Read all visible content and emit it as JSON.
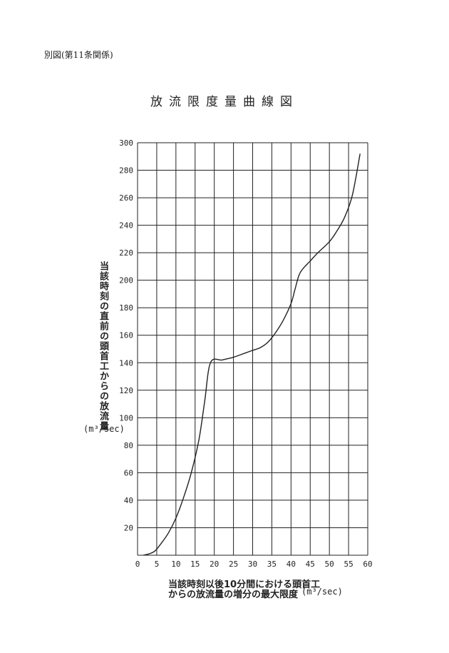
{
  "header": {
    "reference": "別図(第11条関係)",
    "title": "放流限度量曲線図"
  },
  "chart_data": {
    "type": "line",
    "title": "放流限度量曲線図",
    "ylabel": "当該時刻の直前の頭首工からの放流量",
    "yunit": "(m³/sec)",
    "xlabel_line1": "当該時刻以後10分間における頭首工",
    "xlabel_line2": "からの放流量の増分の最大限度",
    "xunit": "(m³/sec)",
    "xlim": [
      0,
      60
    ],
    "ylim": [
      0,
      300
    ],
    "grid": true,
    "x_ticks": [
      "0",
      "5",
      "10",
      "15",
      "20",
      "25",
      "30",
      "35",
      "40",
      "45",
      "50",
      "55",
      "60"
    ],
    "y_ticks": [
      "20",
      "40",
      "60",
      "80",
      "100",
      "120",
      "140",
      "160",
      "180",
      "200",
      "220",
      "240",
      "260",
      "280",
      "300"
    ],
    "series": [
      {
        "x": [
          1.5,
          3,
          4.5,
          6,
          8,
          10,
          12,
          14,
          16,
          17.5,
          19,
          22,
          25,
          28,
          30,
          32,
          34,
          36,
          38,
          40,
          41,
          42,
          43,
          45,
          47,
          50,
          52,
          54,
          56,
          58
        ],
        "y": [
          0,
          1,
          3,
          8,
          16,
          27,
          42,
          60,
          84,
          112,
          140,
          142,
          144,
          147,
          149,
          151,
          155,
          162,
          171,
          183,
          193,
          203,
          208,
          214,
          220,
          228,
          236,
          246,
          262,
          292
        ]
      }
    ]
  },
  "colors": {
    "line": "#222222",
    "grid": "#222222"
  }
}
